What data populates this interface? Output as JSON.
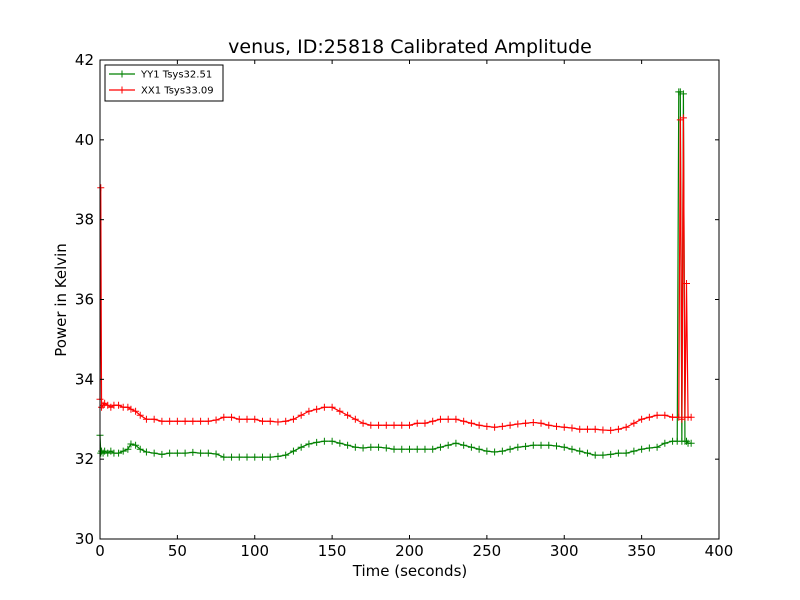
{
  "chart_data": {
    "type": "line",
    "title": "venus, ID:25818 Calibrated Amplitude",
    "xlabel": "Time (seconds)",
    "ylabel": "Power in Kelvin",
    "xlim": [
      0,
      400
    ],
    "ylim": [
      30,
      42
    ],
    "xticks": [
      0,
      50,
      100,
      150,
      200,
      250,
      300,
      350,
      400
    ],
    "yticks": [
      30,
      32,
      34,
      36,
      38,
      40,
      42
    ],
    "grid": false,
    "legend_position": "top-left",
    "marker": "plus",
    "series": [
      {
        "name": "YY1 Tsys32.51",
        "color": "#008000",
        "x": [
          0,
          0.5,
          1,
          2,
          3,
          5,
          7,
          9,
          12,
          15,
          18,
          20,
          23,
          26,
          30,
          35,
          40,
          45,
          50,
          55,
          60,
          65,
          70,
          75,
          80,
          85,
          90,
          95,
          100,
          105,
          110,
          115,
          120,
          125,
          130,
          135,
          140,
          145,
          150,
          155,
          160,
          165,
          170,
          175,
          180,
          185,
          190,
          195,
          200,
          205,
          210,
          215,
          220,
          225,
          230,
          235,
          240,
          245,
          250,
          255,
          260,
          265,
          270,
          275,
          280,
          285,
          290,
          295,
          300,
          305,
          310,
          315,
          320,
          325,
          330,
          335,
          340,
          345,
          350,
          355,
          360,
          365,
          370,
          373,
          374,
          375,
          376,
          377,
          378,
          379,
          380,
          382
        ],
        "y": [
          32.6,
          32.15,
          32.2,
          32.15,
          32.2,
          32.15,
          32.2,
          32.15,
          32.15,
          32.2,
          32.25,
          32.38,
          32.35,
          32.25,
          32.18,
          32.15,
          32.12,
          32.15,
          32.15,
          32.15,
          32.17,
          32.15,
          32.15,
          32.13,
          32.05,
          32.05,
          32.05,
          32.05,
          32.05,
          32.05,
          32.05,
          32.07,
          32.1,
          32.2,
          32.3,
          32.38,
          32.42,
          32.45,
          32.45,
          32.4,
          32.35,
          32.3,
          32.28,
          32.3,
          32.3,
          32.28,
          32.25,
          32.25,
          32.25,
          32.25,
          32.25,
          32.25,
          32.3,
          32.35,
          32.4,
          32.35,
          32.3,
          32.25,
          32.2,
          32.18,
          32.2,
          32.25,
          32.3,
          32.32,
          32.35,
          32.35,
          32.35,
          32.33,
          32.3,
          32.25,
          32.2,
          32.15,
          32.1,
          32.1,
          32.12,
          32.15,
          32.15,
          32.2,
          32.25,
          32.28,
          32.3,
          32.4,
          32.45,
          32.45,
          41.2,
          41.2,
          32.45,
          41.15,
          32.45,
          32.45,
          32.4,
          32.4
        ]
      },
      {
        "name": "XX1 Tsys33.09",
        "color": "#ff0000",
        "x": [
          0,
          0.5,
          1,
          2,
          3,
          5,
          7,
          9,
          12,
          15,
          18,
          20,
          23,
          26,
          30,
          35,
          40,
          45,
          50,
          55,
          60,
          65,
          70,
          75,
          80,
          85,
          90,
          95,
          100,
          105,
          110,
          115,
          120,
          125,
          130,
          135,
          140,
          145,
          150,
          155,
          160,
          165,
          170,
          175,
          180,
          185,
          190,
          195,
          200,
          205,
          210,
          215,
          220,
          225,
          230,
          235,
          240,
          245,
          250,
          255,
          260,
          265,
          270,
          275,
          280,
          285,
          290,
          295,
          300,
          305,
          310,
          315,
          320,
          325,
          330,
          335,
          340,
          345,
          350,
          355,
          360,
          365,
          370,
          374,
          375,
          376,
          377,
          378,
          379,
          380,
          382
        ],
        "y": [
          33.5,
          38.8,
          33.3,
          33.35,
          33.4,
          33.35,
          33.3,
          33.35,
          33.35,
          33.3,
          33.3,
          33.25,
          33.2,
          33.1,
          33.0,
          33.0,
          32.95,
          32.95,
          32.95,
          32.95,
          32.95,
          32.95,
          32.95,
          32.98,
          33.05,
          33.05,
          33.0,
          33.0,
          33.0,
          32.95,
          32.95,
          32.93,
          32.95,
          33.0,
          33.1,
          33.2,
          33.25,
          33.3,
          33.3,
          33.2,
          33.1,
          33.0,
          32.9,
          32.85,
          32.85,
          32.85,
          32.85,
          32.85,
          32.85,
          32.9,
          32.9,
          32.95,
          33.0,
          33.0,
          33.0,
          32.95,
          32.9,
          32.85,
          32.82,
          32.8,
          32.82,
          32.85,
          32.88,
          32.9,
          32.92,
          32.9,
          32.85,
          32.82,
          32.8,
          32.78,
          32.75,
          32.75,
          32.75,
          32.73,
          32.72,
          32.75,
          32.8,
          32.9,
          33.0,
          33.05,
          33.1,
          33.1,
          33.05,
          33.05,
          40.5,
          33.0,
          40.55,
          33.05,
          36.4,
          33.05,
          33.05
        ]
      }
    ]
  }
}
